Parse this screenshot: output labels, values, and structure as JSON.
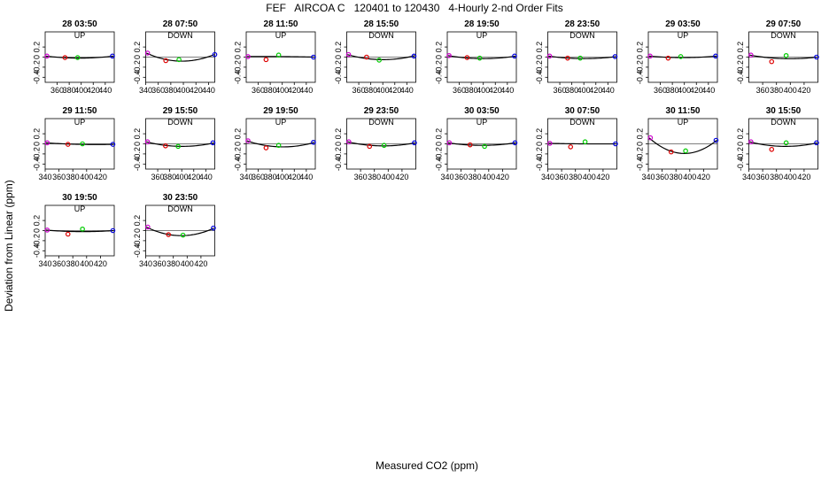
{
  "title": "FEF   AIRCOA C   120401 to 120430   4-Hourly 2-nd Order Fits",
  "xlabel": "Measured CO2 (ppm)",
  "ylabel": "Deviation from Linear (ppm)",
  "colors": {
    "axis": "#000000",
    "fit": "#000000",
    "point_colors": [
      "#cc00cc",
      "#dd0000",
      "#00cc00",
      "#0000dd"
    ]
  },
  "chart_data": [
    {
      "type": "scatter",
      "title": "28 03:50",
      "direction": "UP",
      "xlim": [
        340,
        455
      ],
      "xticks": [
        360,
        380,
        400,
        420,
        440
      ],
      "ylim": [
        -0.5,
        0.5
      ],
      "yticks": [
        -0.4,
        -0.2,
        0.0,
        0.2
      ],
      "points": [
        {
          "x": 343,
          "y": 0.02
        },
        {
          "x": 373,
          "y": -0.01
        },
        {
          "x": 394,
          "y": -0.01
        },
        {
          "x": 452,
          "y": 0.02
        }
      ],
      "fit": [
        0.02,
        -0.02,
        0.02
      ]
    },
    {
      "type": "scatter",
      "title": "28 07:50",
      "direction": "DOWN",
      "xlim": [
        340,
        450
      ],
      "xticks": [
        340,
        360,
        380,
        400,
        420,
        440
      ],
      "ylim": [
        -0.5,
        0.5
      ],
      "yticks": [
        -0.4,
        -0.2,
        0.0,
        0.2
      ],
      "points": [
        {
          "x": 343,
          "y": 0.08
        },
        {
          "x": 372,
          "y": -0.07
        },
        {
          "x": 393,
          "y": -0.05
        },
        {
          "x": 450,
          "y": 0.05
        }
      ],
      "fit": [
        0.08,
        -0.08,
        0.05
      ]
    },
    {
      "type": "scatter",
      "title": "28 11:50",
      "direction": "UP",
      "xlim": [
        340,
        455
      ],
      "xticks": [
        360,
        380,
        400,
        420,
        440
      ],
      "ylim": [
        -0.5,
        0.5
      ],
      "yticks": [
        -0.4,
        -0.2,
        0.0,
        0.2
      ],
      "points": [
        {
          "x": 343,
          "y": 0.01
        },
        {
          "x": 373,
          "y": -0.05
        },
        {
          "x": 394,
          "y": 0.04
        },
        {
          "x": 452,
          "y": 0.0
        }
      ],
      "fit": [
        0.01,
        0.01,
        0.0
      ]
    },
    {
      "type": "scatter",
      "title": "28 15:50",
      "direction": "DOWN",
      "xlim": [
        340,
        455
      ],
      "xticks": [
        360,
        380,
        400,
        420,
        440
      ],
      "ylim": [
        -0.5,
        0.5
      ],
      "yticks": [
        -0.4,
        -0.2,
        0.0,
        0.2
      ],
      "points": [
        {
          "x": 343,
          "y": 0.05
        },
        {
          "x": 373,
          "y": 0.0
        },
        {
          "x": 394,
          "y": -0.06
        },
        {
          "x": 452,
          "y": 0.02
        }
      ],
      "fit": [
        0.05,
        -0.05,
        0.03
      ]
    },
    {
      "type": "scatter",
      "title": "28 19:50",
      "direction": "UP",
      "xlim": [
        340,
        455
      ],
      "xticks": [
        360,
        380,
        400,
        420,
        440
      ],
      "ylim": [
        -0.5,
        0.5
      ],
      "yticks": [
        -0.4,
        -0.2,
        0.0,
        0.2
      ],
      "points": [
        {
          "x": 343,
          "y": 0.03
        },
        {
          "x": 373,
          "y": -0.01
        },
        {
          "x": 394,
          "y": -0.02
        },
        {
          "x": 452,
          "y": 0.02
        }
      ],
      "fit": [
        0.03,
        -0.03,
        0.02
      ]
    },
    {
      "type": "scatter",
      "title": "28 23:50",
      "direction": "DOWN",
      "xlim": [
        340,
        455
      ],
      "xticks": [
        360,
        380,
        400,
        420,
        440
      ],
      "ylim": [
        -0.5,
        0.5
      ],
      "yticks": [
        -0.4,
        -0.2,
        0.0,
        0.2
      ],
      "points": [
        {
          "x": 343,
          "y": 0.02
        },
        {
          "x": 373,
          "y": -0.02
        },
        {
          "x": 394,
          "y": -0.02
        },
        {
          "x": 452,
          "y": 0.01
        }
      ],
      "fit": [
        0.02,
        -0.03,
        0.01
      ]
    },
    {
      "type": "scatter",
      "title": "29 03:50",
      "direction": "UP",
      "xlim": [
        340,
        455
      ],
      "xticks": [
        360,
        380,
        400,
        420,
        440
      ],
      "ylim": [
        -0.5,
        0.5
      ],
      "yticks": [
        -0.4,
        -0.2,
        0.0,
        0.2
      ],
      "points": [
        {
          "x": 343,
          "y": 0.02
        },
        {
          "x": 373,
          "y": -0.02
        },
        {
          "x": 394,
          "y": 0.01
        },
        {
          "x": 452,
          "y": 0.02
        }
      ],
      "fit": [
        0.02,
        -0.01,
        0.02
      ]
    },
    {
      "type": "scatter",
      "title": "29 07:50",
      "direction": "DOWN",
      "xlim": [
        340,
        440
      ],
      "xticks": [
        360,
        380,
        400,
        420
      ],
      "ylim": [
        -0.5,
        0.5
      ],
      "yticks": [
        -0.4,
        -0.2,
        0.0,
        0.2
      ],
      "points": [
        {
          "x": 343,
          "y": 0.04
        },
        {
          "x": 373,
          "y": -0.09
        },
        {
          "x": 394,
          "y": 0.03
        },
        {
          "x": 438,
          "y": 0.0
        }
      ],
      "fit": [
        0.04,
        -0.03,
        0.0
      ]
    },
    {
      "type": "scatter",
      "title": "29 11:50",
      "direction": "UP",
      "xlim": [
        340,
        440
      ],
      "xticks": [
        340,
        360,
        380,
        400,
        420
      ],
      "ylim": [
        -0.5,
        0.5
      ],
      "yticks": [
        -0.4,
        -0.2,
        0.0,
        0.2
      ],
      "points": [
        {
          "x": 343,
          "y": 0.02
        },
        {
          "x": 373,
          "y": -0.01
        },
        {
          "x": 394,
          "y": 0.0
        },
        {
          "x": 438,
          "y": -0.01
        }
      ],
      "fit": [
        0.02,
        -0.01,
        -0.01
      ]
    },
    {
      "type": "scatter",
      "title": "29 15:50",
      "direction": "DOWN",
      "xlim": [
        340,
        455
      ],
      "xticks": [
        360,
        380,
        400,
        420,
        440
      ],
      "ylim": [
        -0.5,
        0.5
      ],
      "yticks": [
        -0.4,
        -0.2,
        0.0,
        0.2
      ],
      "points": [
        {
          "x": 343,
          "y": 0.04
        },
        {
          "x": 373,
          "y": -0.04
        },
        {
          "x": 394,
          "y": -0.05
        },
        {
          "x": 452,
          "y": 0.02
        }
      ],
      "fit": [
        0.04,
        -0.05,
        0.02
      ]
    },
    {
      "type": "scatter",
      "title": "29 19:50",
      "direction": "UP",
      "xlim": [
        340,
        455
      ],
      "xticks": [
        340,
        360,
        380,
        400,
        420,
        440
      ],
      "ylim": [
        -0.5,
        0.5
      ],
      "yticks": [
        -0.4,
        -0.2,
        0.0,
        0.2
      ],
      "points": [
        {
          "x": 343,
          "y": 0.06
        },
        {
          "x": 373,
          "y": -0.08
        },
        {
          "x": 394,
          "y": -0.03
        },
        {
          "x": 452,
          "y": 0.03
        }
      ],
      "fit": [
        0.06,
        -0.06,
        0.03
      ]
    },
    {
      "type": "scatter",
      "title": "29 23:50",
      "direction": "DOWN",
      "xlim": [
        340,
        440
      ],
      "xticks": [
        360,
        380,
        400,
        420
      ],
      "ylim": [
        -0.5,
        0.5
      ],
      "yticks": [
        -0.4,
        -0.2,
        0.0,
        0.2
      ],
      "points": [
        {
          "x": 343,
          "y": 0.04
        },
        {
          "x": 373,
          "y": -0.05
        },
        {
          "x": 394,
          "y": -0.03
        },
        {
          "x": 438,
          "y": 0.02
        }
      ],
      "fit": [
        0.04,
        -0.04,
        0.02
      ]
    },
    {
      "type": "scatter",
      "title": "30 03:50",
      "direction": "UP",
      "xlim": [
        340,
        440
      ],
      "xticks": [
        340,
        360,
        380,
        400,
        420
      ],
      "ylim": [
        -0.5,
        0.5
      ],
      "yticks": [
        -0.4,
        -0.2,
        0.0,
        0.2
      ],
      "points": [
        {
          "x": 343,
          "y": 0.02
        },
        {
          "x": 373,
          "y": -0.02
        },
        {
          "x": 394,
          "y": -0.05
        },
        {
          "x": 438,
          "y": 0.02
        }
      ],
      "fit": [
        0.02,
        -0.03,
        0.02
      ]
    },
    {
      "type": "scatter",
      "title": "30 07:50",
      "direction": "DOWN",
      "xlim": [
        340,
        440
      ],
      "xticks": [
        340,
        360,
        380,
        400,
        420
      ],
      "ylim": [
        -0.5,
        0.5
      ],
      "yticks": [
        -0.4,
        -0.2,
        0.0,
        0.2
      ],
      "points": [
        {
          "x": 343,
          "y": 0.01
        },
        {
          "x": 373,
          "y": -0.06
        },
        {
          "x": 394,
          "y": 0.04
        },
        {
          "x": 438,
          "y": 0.0
        }
      ],
      "fit": [
        0.01,
        0.0,
        0.0
      ]
    },
    {
      "type": "scatter",
      "title": "30 11:50",
      "direction": "UP",
      "xlim": [
        340,
        440
      ],
      "xticks": [
        340,
        360,
        380,
        400,
        420
      ],
      "ylim": [
        -0.5,
        0.5
      ],
      "yticks": [
        -0.4,
        -0.2,
        0.0,
        0.2
      ],
      "points": [
        {
          "x": 343,
          "y": 0.12
        },
        {
          "x": 373,
          "y": -0.16
        },
        {
          "x": 394,
          "y": -0.14
        },
        {
          "x": 438,
          "y": 0.07
        }
      ],
      "fit": [
        0.12,
        -0.19,
        0.07
      ]
    },
    {
      "type": "scatter",
      "title": "30 15:50",
      "direction": "DOWN",
      "xlim": [
        340,
        440
      ],
      "xticks": [
        340,
        360,
        380,
        400,
        420
      ],
      "ylim": [
        -0.5,
        0.5
      ],
      "yticks": [
        -0.4,
        -0.2,
        0.0,
        0.2
      ],
      "points": [
        {
          "x": 343,
          "y": 0.04
        },
        {
          "x": 373,
          "y": -0.11
        },
        {
          "x": 394,
          "y": 0.02
        },
        {
          "x": 438,
          "y": 0.02
        }
      ],
      "fit": [
        0.04,
        -0.05,
        0.02
      ]
    },
    {
      "type": "scatter",
      "title": "30 19:50",
      "direction": "UP",
      "xlim": [
        340,
        440
      ],
      "xticks": [
        340,
        360,
        380,
        400,
        420
      ],
      "ylim": [
        -0.5,
        0.5
      ],
      "yticks": [
        -0.4,
        -0.2,
        0.0,
        0.2
      ],
      "points": [
        {
          "x": 343,
          "y": 0.01
        },
        {
          "x": 373,
          "y": -0.07
        },
        {
          "x": 394,
          "y": 0.03
        },
        {
          "x": 438,
          "y": 0.0
        }
      ],
      "fit": [
        0.01,
        -0.02,
        0.0
      ]
    },
    {
      "type": "scatter",
      "title": "30 23:50",
      "direction": "DOWN",
      "xlim": [
        340,
        440
      ],
      "xticks": [
        340,
        360,
        380,
        400,
        420
      ],
      "ylim": [
        -0.5,
        0.5
      ],
      "yticks": [
        -0.4,
        -0.2,
        0.0,
        0.2
      ],
      "points": [
        {
          "x": 343,
          "y": 0.07
        },
        {
          "x": 373,
          "y": -0.08
        },
        {
          "x": 394,
          "y": -0.09
        },
        {
          "x": 438,
          "y": 0.05
        }
      ],
      "fit": [
        0.07,
        -0.1,
        0.05
      ]
    }
  ]
}
